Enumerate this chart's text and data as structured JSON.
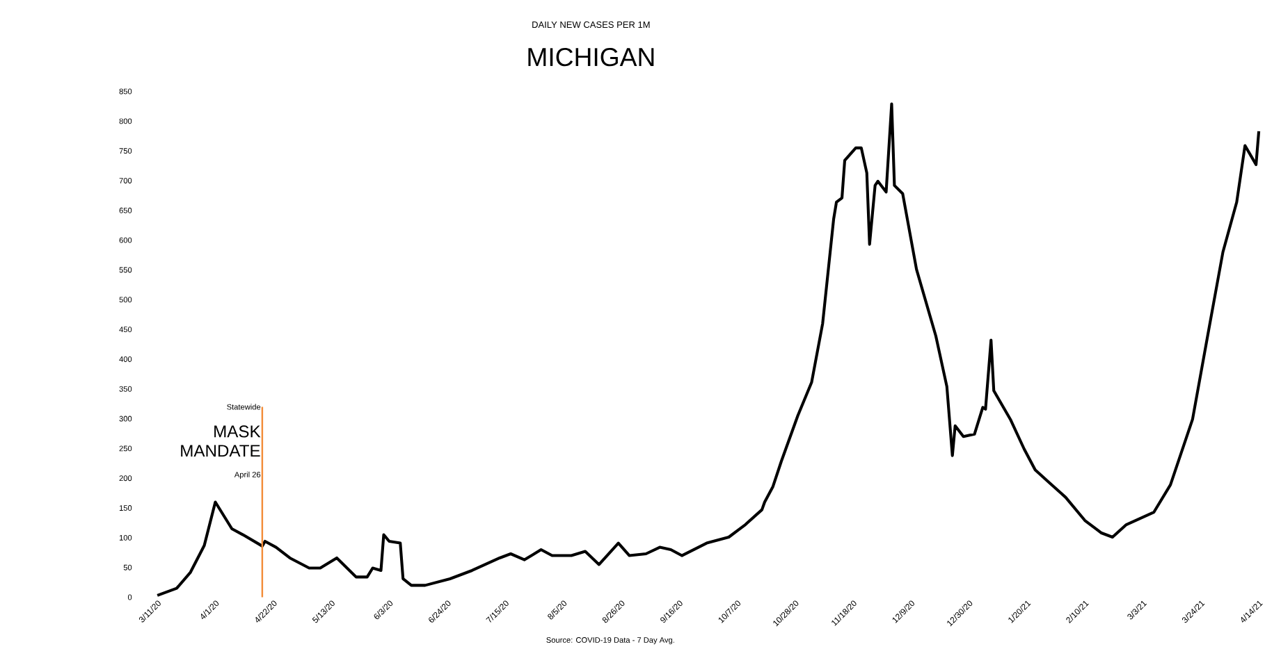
{
  "chart_data": {
    "type": "line",
    "subtitle": "DAILY NEW CASES PER 1M",
    "title": "MICHIGAN",
    "annotations": [
      {
        "text": "Statewide",
        "x": "2020-04-18",
        "y": 320
      },
      {
        "text": "April 26",
        "x": "2020-04-18",
        "y": 205
      },
      "Source: COVID-19 Data - 7 Day Avg."
    ],
    "ref_lines": [
      {
        "axis": "x",
        "value": "2020-04-18",
        "label": "MASK MANDATE",
        "color": "#f28c38"
      }
    ],
    "x": [
      "2020-03-11",
      "2020-03-18",
      "2020-03-23",
      "2020-03-28",
      "2020-04-01",
      "2020-04-07",
      "2020-04-11",
      "2020-04-18",
      "2020-04-19",
      "2020-04-23",
      "2020-04-28",
      "2020-05-05",
      "2020-05-09",
      "2020-05-15",
      "2020-05-22",
      "2020-05-26",
      "2020-05-28",
      "2020-05-31",
      "2020-06-01",
      "2020-06-03",
      "2020-06-07",
      "2020-06-08",
      "2020-06-11",
      "2020-06-16",
      "2020-06-25",
      "2020-07-03",
      "2020-07-13",
      "2020-07-17",
      "2020-07-22",
      "2020-07-28",
      "2020-08-01",
      "2020-08-08",
      "2020-08-13",
      "2020-08-18",
      "2020-08-25",
      "2020-08-29",
      "2020-09-04",
      "2020-09-09",
      "2020-09-13",
      "2020-09-17",
      "2020-09-26",
      "2020-10-04",
      "2020-10-10",
      "2020-10-16",
      "2020-10-17",
      "2020-10-20",
      "2020-10-23",
      "2020-10-29",
      "2020-11-03",
      "2020-11-07",
      "2020-11-11",
      "2020-11-12",
      "2020-11-14",
      "2020-11-15",
      "2020-11-19",
      "2020-11-21",
      "2020-11-23",
      "2020-11-24",
      "2020-11-26",
      "2020-11-27",
      "2020-11-30",
      "2020-12-02",
      "2020-12-03",
      "2020-12-06",
      "2020-12-11",
      "2020-12-18",
      "2020-12-22",
      "2020-12-24",
      "2020-12-25",
      "2020-12-28",
      "2021-01-01",
      "2021-01-04",
      "2021-01-05",
      "2021-01-07",
      "2021-01-08",
      "2021-01-14",
      "2021-01-19",
      "2021-01-23",
      "2021-01-28",
      "2021-02-03",
      "2021-02-10",
      "2021-02-16",
      "2021-02-20",
      "2021-02-25",
      "2021-03-07",
      "2021-03-13",
      "2021-03-21",
      "2021-03-27",
      "2021-04-01",
      "2021-04-06",
      "2021-04-09",
      "2021-04-13",
      "2021-04-14"
    ],
    "series": [
      {
        "color": "#000000",
        "values": [
          3,
          15,
          42,
          87,
          160,
          115,
          105,
          86,
          94,
          84,
          66,
          49,
          49,
          66,
          34,
          34,
          49,
          45,
          105,
          94,
          91,
          31,
          20,
          20,
          31,
          45,
          66,
          73,
          63,
          80,
          70,
          70,
          77,
          55,
          91,
          70,
          73,
          84,
          80,
          70,
          91,
          101,
          122,
          147,
          160,
          186,
          228,
          305,
          361,
          460,
          636,
          664,
          671,
          734,
          755,
          755,
          713,
          593,
          692,
          699,
          681,
          829,
          692,
          678,
          551,
          439,
          354,
          238,
          288,
          270,
          274,
          319,
          316,
          432,
          347,
          299,
          249,
          214,
          193,
          168,
          129,
          108,
          101,
          122,
          143,
          189,
          299,
          453,
          580,
          664,
          759,
          727,
          783
        ]
      }
    ],
    "xlim": [
      "2020-03-11",
      "2021-04-14"
    ],
    "xticks": [
      {
        "value": "2020-03-11",
        "label": "3/11/20"
      },
      {
        "value": "2020-04-01",
        "label": "4/1/20"
      },
      {
        "value": "2020-04-22",
        "label": "4/22/20"
      },
      {
        "value": "2020-05-13",
        "label": "5/13/20"
      },
      {
        "value": "2020-06-03",
        "label": "6/3/20"
      },
      {
        "value": "2020-06-24",
        "label": "6/24/20"
      },
      {
        "value": "2020-07-15",
        "label": "7/15/20"
      },
      {
        "value": "2020-08-05",
        "label": "8/5/20"
      },
      {
        "value": "2020-08-26",
        "label": "8/26/20"
      },
      {
        "value": "2020-09-16",
        "label": "9/16/20"
      },
      {
        "value": "2020-10-07",
        "label": "10/7/20"
      },
      {
        "value": "2020-10-28",
        "label": "10/28/20"
      },
      {
        "value": "2020-11-18",
        "label": "11/18/20"
      },
      {
        "value": "2020-12-09",
        "label": "12/9/20"
      },
      {
        "value": "2020-12-30",
        "label": "12/30/20"
      },
      {
        "value": "2021-01-20",
        "label": "1/20/21"
      },
      {
        "value": "2021-02-10",
        "label": "2/10/21"
      },
      {
        "value": "2021-03-03",
        "label": "3/3/21"
      },
      {
        "value": "2021-03-24",
        "label": "3/24/21"
      },
      {
        "value": "2021-04-14",
        "label": "4/14/21"
      }
    ],
    "ylim": [
      0,
      850
    ],
    "yticks": [
      0,
      50,
      100,
      150,
      200,
      250,
      300,
      350,
      400,
      450,
      500,
      550,
      600,
      650,
      700,
      750,
      800,
      850
    ]
  }
}
